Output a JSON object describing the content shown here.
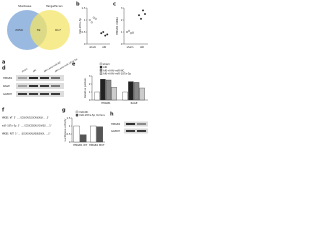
{
  "venn": {
    "letter": "a",
    "left": "Starbase",
    "right": "TargetScan",
    "left_only": "2059",
    "overlap": "39",
    "right_only": "617"
  },
  "dot_b": {
    "letter": "b",
    "ylabel": "miR-187a-5p",
    "categories": [
      "sham",
      "AKI"
    ],
    "values": [
      [
        1.0,
        0.9,
        1.1,
        1.05
      ],
      [
        0.45,
        0.5,
        0.35,
        0.4
      ]
    ],
    "ylim": [
      0,
      1.5
    ],
    "yticks": [
      0,
      0.5,
      1,
      1.5
    ]
  },
  "dot_c": {
    "letter": "c",
    "ylabel": "HMGB1 mRNA",
    "categories": [
      "sham",
      "AKI"
    ],
    "values": [
      [
        1.0,
        1.1,
        0.9,
        0.95
      ],
      [
        2.4,
        2.1,
        2.8,
        2.5
      ]
    ],
    "ylim": [
      0,
      3
    ],
    "yticks": [
      0,
      1,
      2,
      3
    ]
  },
  "blot": {
    "letter": "d",
    "columns": [
      "sham",
      "AKI",
      "AKI+AAV-miR-NC",
      "AKI+AAV-miR-187a-5p"
    ],
    "rows": [
      "HMGB1",
      "RAGE",
      "GAPDH"
    ]
  },
  "bar_e": {
    "letter": "e",
    "ylabel": "Relative protein",
    "categories": [
      "HMGB1",
      "RAGE"
    ],
    "series": [
      {
        "name": "sham",
        "color": "#ffffff",
        "values": [
          1.0,
          1.0
        ]
      },
      {
        "name": "AKI",
        "color": "#222222",
        "values": [
          2.6,
          2.3
        ]
      },
      {
        "name": "AKI+AAV-miR-NC",
        "color": "#888888",
        "values": [
          2.5,
          2.2
        ]
      },
      {
        "name": "AKI+AAV-miR-187a-5p",
        "color": "#cccccc",
        "values": [
          1.6,
          1.5
        ]
      }
    ],
    "ylim": [
      0,
      3
    ],
    "yticks": [
      0,
      1,
      2,
      3
    ]
  },
  "seq": {
    "letter": "f",
    "lines": [
      "HMGB1 WT 5'...UCGACACUCUCAAGAGA...3'",
      "miR-187a-5p 3'...GCCUCGGGACACAAGU...5'",
      "HMGB1 MUT 5'...UCGACAGAGAGUUGAGA...3'"
    ]
  },
  "bar_g": {
    "letter": "g",
    "ylabel": "Luciferase activity",
    "categories": [
      "HMGB1 WT",
      "HMGB1 MUT"
    ],
    "series": [
      {
        "name": "miR-NC",
        "color": "#ffffff",
        "values": [
          1.0,
          1.0
        ]
      },
      {
        "name": "miR-187a-5p mimics",
        "color": "#555555",
        "values": [
          0.45,
          0.95
        ]
      }
    ],
    "ylim": [
      0,
      1.5
    ],
    "yticks": [
      0,
      0.5,
      1,
      1.5
    ]
  },
  "blot_h": {
    "letter": "h",
    "rows": [
      "HMGB1",
      "GAPDH"
    ]
  }
}
